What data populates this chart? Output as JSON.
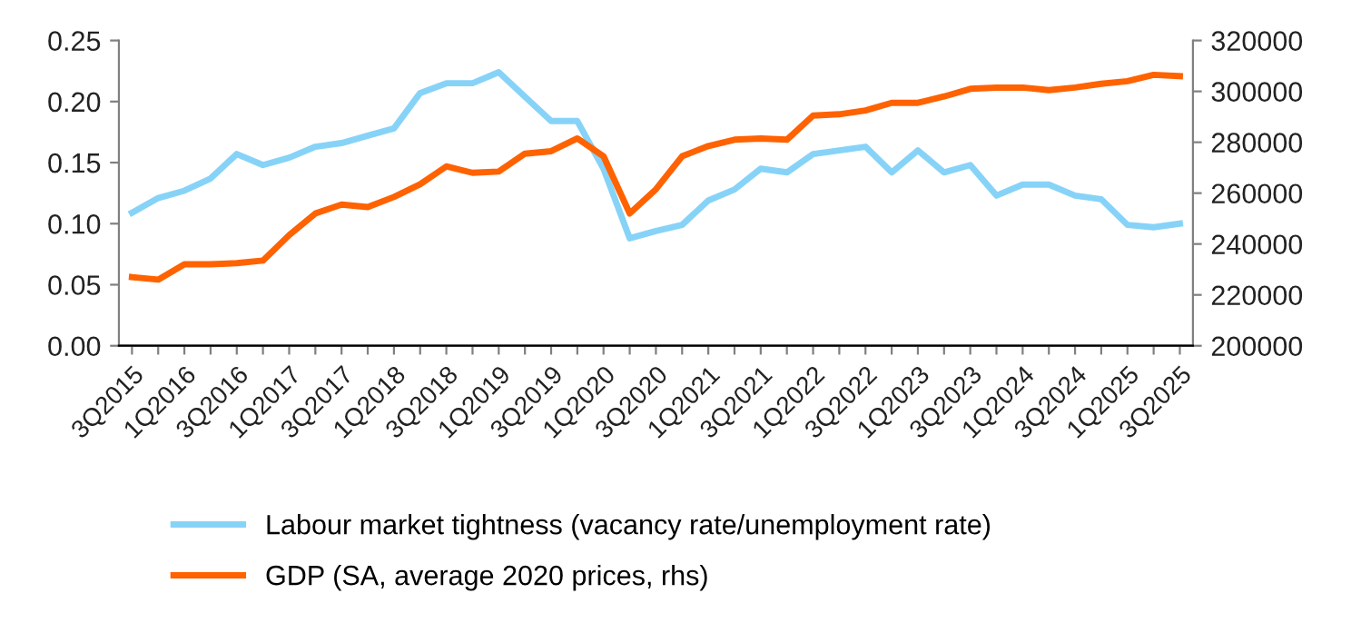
{
  "chart_data": {
    "type": "line",
    "categories": [
      "3Q2015",
      null,
      "1Q2016",
      null,
      "3Q2016",
      null,
      "1Q2017",
      null,
      "3Q2017",
      null,
      "1Q2018",
      null,
      "3Q2018",
      null,
      "1Q2019",
      null,
      "3Q2019",
      null,
      "1Q2020",
      null,
      "3Q2020",
      null,
      "1Q2021",
      null,
      "3Q2021",
      null,
      "1Q2022",
      null,
      "3Q2022",
      null,
      "1Q2023",
      null,
      "3Q2023",
      null,
      "1Q2024",
      null,
      "3Q2024",
      null,
      "1Q2025",
      null,
      "3Q2025"
    ],
    "series": [
      {
        "name": "Labour market tightness (vacancy rate/unemployment rate)",
        "color": "#87d3f8",
        "values": [
          0.109,
          0.121,
          0.127,
          0.137,
          0.157,
          0.148,
          0.154,
          0.163,
          0.166,
          0.172,
          0.178,
          0.207,
          0.215,
          0.215,
          0.224,
          0.204,
          0.184,
          0.184,
          0.145,
          0.088,
          0.094,
          0.099,
          0.119,
          0.128,
          0.145,
          0.142,
          0.157,
          0.16,
          0.163,
          0.142,
          0.16,
          0.142,
          0.148,
          0.123,
          0.132,
          0.132,
          0.123,
          0.12,
          0.099,
          0.097,
          0.1
        ]
      },
      {
        "name": "GDP (SA, average 2020 prices, rhs)",
        "color": "#ff6200",
        "axis": "y2",
        "values": [
          227000,
          226000,
          232000,
          232000,
          232500,
          233500,
          243500,
          252000,
          255500,
          254500,
          258500,
          263500,
          270500,
          268000,
          268500,
          275500,
          276500,
          281500,
          274500,
          252000,
          261500,
          274500,
          278500,
          281000,
          281500,
          281000,
          290500,
          291000,
          292500,
          295500,
          295500,
          298000,
          301000,
          301500,
          301500,
          300500,
          301500,
          303000,
          304000,
          306500,
          306000
        ]
      }
    ],
    "ylim": [
      0,
      0.25
    ],
    "yticks": [
      {
        "value": 0,
        "label": "0.00"
      },
      {
        "value": 0.05,
        "label": "0.05"
      },
      {
        "value": 0.1,
        "label": "0.10"
      },
      {
        "value": 0.15,
        "label": "0.15"
      },
      {
        "value": 0.2,
        "label": "0.20"
      },
      {
        "value": 0.25,
        "label": "0.25"
      }
    ],
    "y2lim": [
      200000,
      320000
    ],
    "y2ticks": [
      200000,
      220000,
      240000,
      260000,
      280000,
      300000,
      320000
    ],
    "grid": false,
    "legend": "bottom",
    "marker": "none",
    "line_style": "solid"
  }
}
